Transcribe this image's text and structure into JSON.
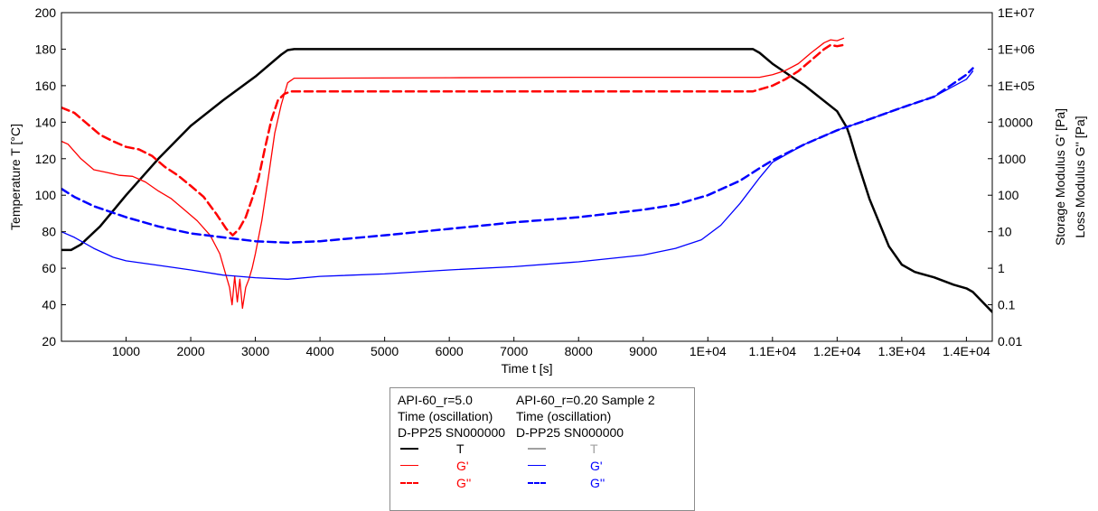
{
  "chart_data": {
    "type": "line",
    "xlabel": "Time t [s]",
    "ylabel_left": "Temperature T [°C]",
    "ylabel_right_1": "Storage Modulus G' [Pa]",
    "ylabel_right_2": "Loss Modulus G'' [Pa]",
    "xlim": [
      0,
      14400
    ],
    "ylim_left": [
      20,
      200
    ],
    "ylim_right": [
      0.01,
      10000000
    ],
    "right_axis_scale": "log",
    "x_ticks": [
      1000,
      2000,
      3000,
      4000,
      5000,
      6000,
      7000,
      8000,
      9000,
      10000,
      11000,
      12000,
      13000,
      14000
    ],
    "x_tick_labels": [
      "1000",
      "2000",
      "3000",
      "4000",
      "5000",
      "6000",
      "7000",
      "8000",
      "9000",
      "1E+04",
      "1.1E+04",
      "1.2E+04",
      "1.3E+04",
      "1.4E+04"
    ],
    "y_left_ticks": [
      20,
      40,
      60,
      80,
      100,
      120,
      140,
      160,
      180,
      200
    ],
    "y_left_tick_labels": [
      "20",
      "40",
      "60",
      "80",
      "100",
      "120",
      "140",
      "160",
      "180",
      "200"
    ],
    "y_right_ticks": [
      0.01,
      0.1,
      1,
      10,
      100,
      1000,
      10000,
      100000,
      1000000,
      10000000
    ],
    "y_right_tick_labels": [
      "0.01",
      "0.1",
      "1",
      "10",
      "100",
      "1000",
      "10000",
      "1E+05",
      "1E+06",
      "1E+07"
    ],
    "grid": false,
    "legend_position": "bottom-center",
    "series": [
      {
        "name": "T",
        "group": "API-60_r=5.0",
        "axis": "left",
        "color": "#000000",
        "dash": "solid",
        "width": 2.5,
        "x": [
          0,
          150,
          300,
          600,
          1000,
          1500,
          2000,
          2500,
          3000,
          3400,
          3500,
          3600,
          4000,
          8000,
          10500,
          10700,
          10800,
          11000,
          11500,
          12000,
          12150,
          12200,
          12300,
          12500,
          12800,
          13000,
          13200,
          13500,
          13800,
          14000,
          14100,
          14400
        ],
        "y": [
          70,
          70,
          73,
          83,
          100,
          120,
          138,
          152,
          165,
          177,
          179.5,
          180,
          180,
          180,
          180,
          180,
          178,
          172,
          160,
          146,
          137,
          132,
          120,
          98,
          72,
          62,
          58,
          55,
          51,
          49,
          47,
          36
        ]
      },
      {
        "name": "G'",
        "group": "API-60_r=5.0",
        "axis": "right",
        "color": "#ff0000",
        "dash": "solid",
        "width": 1.3,
        "x": [
          0,
          100,
          300,
          500,
          700,
          900,
          1100,
          1300,
          1500,
          1700,
          1900,
          2100,
          2300,
          2450,
          2550,
          2600,
          2640,
          2680,
          2720,
          2760,
          2800,
          2850,
          2900,
          2950,
          3000,
          3100,
          3200,
          3300,
          3400,
          3500,
          3600,
          4000,
          6000,
          8000,
          10000,
          10800,
          11000,
          11200,
          11400,
          11600,
          11800,
          11900,
          12000,
          12100
        ],
        "y": [
          3000,
          2500,
          1000,
          500,
          420,
          350,
          330,
          230,
          130,
          80,
          40,
          20,
          8,
          2.5,
          0.6,
          0.3,
          0.1,
          0.6,
          0.12,
          0.5,
          0.08,
          0.3,
          0.5,
          1.0,
          2.5,
          20,
          300,
          5000,
          30000,
          120000,
          160000,
          160000,
          165000,
          170000,
          170000,
          170000,
          200000,
          260000,
          400000,
          800000,
          1500000,
          1800000,
          1700000,
          2000000
        ]
      },
      {
        "name": "G''",
        "group": "API-60_r=5.0",
        "axis": "right",
        "color": "#ff0000",
        "dash": "dashed",
        "width": 2.5,
        "x": [
          0,
          200,
          400,
          600,
          800,
          1000,
          1200,
          1400,
          1600,
          1800,
          2000,
          2200,
          2400,
          2550,
          2650,
          2750,
          2850,
          2950,
          3050,
          3150,
          3250,
          3350,
          3450,
          3550,
          3700,
          5000,
          8000,
          10000,
          10700,
          11000,
          11200,
          11400,
          11600,
          11800,
          11900,
          12000,
          12100
        ],
        "y": [
          25000,
          18000,
          9000,
          4500,
          3000,
          2100,
          1800,
          1200,
          600,
          350,
          180,
          90,
          30,
          12,
          8,
          12,
          25,
          80,
          300,
          2000,
          12000,
          40000,
          60000,
          70000,
          70000,
          70000,
          70000,
          70000,
          70000,
          100000,
          150000,
          250000,
          500000,
          1000000,
          1300000,
          1200000,
          1300000
        ]
      },
      {
        "name": "T",
        "group": "API-60_r=0.20 Sample 2",
        "axis": "left",
        "color": "#a0a0a0",
        "dash": "solid",
        "width": 2.5,
        "x": [],
        "y": []
      },
      {
        "name": "G'",
        "group": "API-60_r=0.20 Sample 2",
        "axis": "right",
        "color": "#0000ff",
        "dash": "solid",
        "width": 1.3,
        "x": [
          0,
          200,
          500,
          800,
          1000,
          1500,
          2000,
          2500,
          3000,
          3500,
          4000,
          5000,
          6000,
          7000,
          8000,
          9000,
          9500,
          9900,
          10200,
          10500,
          10800,
          11000,
          11500,
          12000,
          12500,
          13000,
          13500,
          14000,
          14100
        ],
        "y": [
          10,
          7,
          3.5,
          2,
          1.6,
          1.2,
          0.9,
          0.65,
          0.55,
          0.5,
          0.6,
          0.7,
          0.9,
          1.1,
          1.5,
          2.3,
          3.5,
          6,
          15,
          60,
          300,
          800,
          2500,
          6000,
          12000,
          25000,
          50000,
          150000,
          250000
        ]
      },
      {
        "name": "G''",
        "group": "API-60_r=0.20 Sample 2",
        "axis": "right",
        "color": "#0000ff",
        "dash": "dashed",
        "width": 2.5,
        "x": [
          0,
          200,
          500,
          1000,
          1500,
          2000,
          2500,
          3000,
          3500,
          4000,
          5000,
          6000,
          7000,
          8000,
          9000,
          9500,
          10000,
          10500,
          10800,
          11000,
          11500,
          12000,
          12500,
          13000,
          13500,
          14000,
          14100
        ],
        "y": [
          150,
          90,
          50,
          25,
          14,
          9,
          7,
          5.5,
          5,
          5.5,
          8,
          12,
          18,
          25,
          40,
          55,
          100,
          250,
          550,
          900,
          2500,
          6000,
          12000,
          25000,
          50000,
          200000,
          300000
        ]
      }
    ]
  },
  "legend": {
    "col1_lines": [
      "API-60_r=5.0",
      "Time (oscillation)",
      "D-PP25 SN000000"
    ],
    "col2_lines": [
      "API-60_r=0.20 Sample 2",
      "Time (oscillation)",
      "D-PP25 SN000000"
    ],
    "col1_entries": [
      "T",
      "G'",
      "G''"
    ],
    "col2_entries": [
      "T",
      "G'",
      "G''"
    ],
    "colors": {
      "black": "#000000",
      "red": "#ff0000",
      "blue": "#0000ff",
      "gray": "#a0a0a0"
    }
  }
}
